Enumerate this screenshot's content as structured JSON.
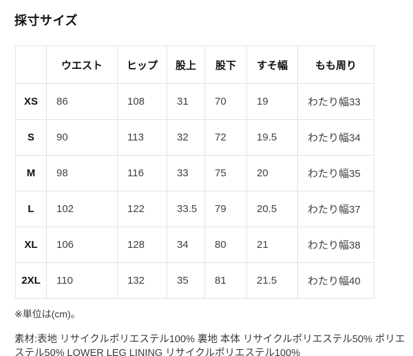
{
  "title": "採寸サイズ",
  "size_table": {
    "columns": [
      "",
      "ウエスト",
      "ヒップ",
      "股上",
      "股下",
      "すそ幅",
      "もも周り"
    ],
    "rows": [
      {
        "size": "XS",
        "values": [
          "86",
          "108",
          "31",
          "70",
          "19",
          "わたり幅33"
        ]
      },
      {
        "size": "S",
        "values": [
          "90",
          "113",
          "32",
          "72",
          "19.5",
          "わたり幅34"
        ]
      },
      {
        "size": "M",
        "values": [
          "98",
          "116",
          "33",
          "75",
          "20",
          "わたり幅35"
        ]
      },
      {
        "size": "L",
        "values": [
          "102",
          "122",
          "33.5",
          "79",
          "20.5",
          "わたり幅37"
        ]
      },
      {
        "size": "XL",
        "values": [
          "106",
          "128",
          "34",
          "80",
          "21",
          "わたり幅38"
        ]
      },
      {
        "size": "2XL",
        "values": [
          "110",
          "132",
          "35",
          "81",
          "21.5",
          "わたり幅40"
        ]
      }
    ]
  },
  "unit_note": "※単位は(cm)。",
  "material_note": "素材:表地 リサイクルポリエステル100% 裏地 本体 リサイクルポリエステル50% ポリエステル50% LOWER LEG LINING リサイクルポリエステル100%",
  "colors": {
    "background": "#ffffff",
    "border": "#e3e3e3",
    "heading_text": "#111111",
    "body_text": "#3f3f3f"
  }
}
